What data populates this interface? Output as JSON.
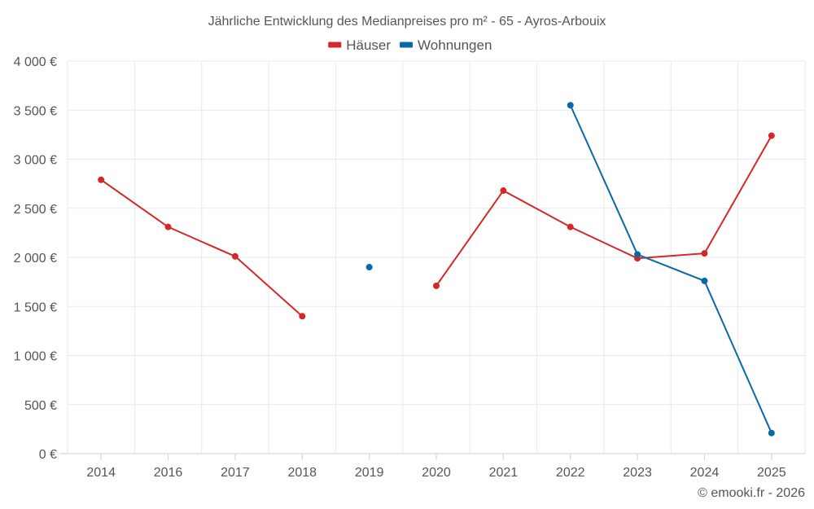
{
  "title": "Jährliche Entwicklung des Medianpreises pro m² - 65 - Ayros-Arbouix",
  "credit": "© emooki.fr - 2026",
  "colors": {
    "houses": "#d62728",
    "apartments": "#0868a8"
  },
  "chart_data": {
    "type": "line",
    "title": "Jährliche Entwicklung des Medianpreises pro m² - 65 - Ayros-Arbouix",
    "categories": [
      "2014",
      "2016",
      "2017",
      "2018",
      "2019",
      "2020",
      "2021",
      "2022",
      "2023",
      "2024",
      "2025"
    ],
    "ylim": [
      0,
      4000
    ],
    "yticks": [
      0,
      500,
      1000,
      1500,
      2000,
      2500,
      3000,
      3500,
      4000
    ],
    "ytick_labels": [
      "0 €",
      "500 €",
      "1 000 €",
      "1 500 €",
      "2 000 €",
      "2 500 €",
      "3 000 €",
      "3 500 €",
      "4 000 €"
    ],
    "grid": true,
    "legend_position": "top-center",
    "series": [
      {
        "name": "Häuser",
        "color": "#d62728",
        "values": [
          2790,
          2310,
          2010,
          1400,
          null,
          1710,
          2680,
          2310,
          1990,
          2040,
          3240
        ]
      },
      {
        "name": "Wohnungen",
        "color": "#0868a8",
        "values": [
          null,
          null,
          null,
          null,
          1900,
          null,
          null,
          3550,
          2030,
          1760,
          210
        ]
      }
    ]
  }
}
